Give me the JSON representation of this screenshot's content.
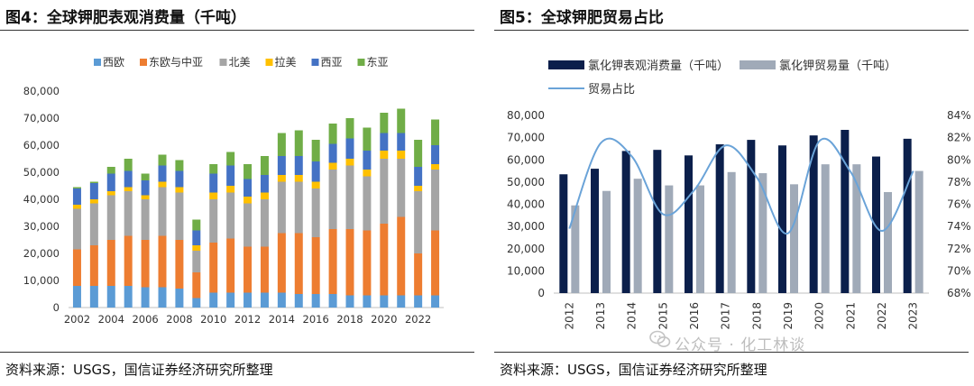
{
  "watermark": "公众号 · 化工林谈",
  "colors": {
    "c1": "#5b9bd5",
    "c2": "#ed7d31",
    "c3": "#a5a5a5",
    "c4": "#ffc000",
    "c5": "#4472c4",
    "c6": "#70ad47",
    "bar1": "#0b1f4b",
    "bar2": "#a0aab8",
    "line": "#6aa3d8"
  },
  "chart_data": [
    {
      "type": "bar",
      "stacked": true,
      "title": "图4：全球钾肥表观消费量（千吨）",
      "source": "资料来源：USGS，国信证券经济研究所整理",
      "legend_position": "top",
      "ylim": [
        0,
        80000
      ],
      "yticks": [
        "0",
        "10,000",
        "20,000",
        "30,000",
        "40,000",
        "50,000",
        "60,000",
        "70,000",
        "80,000"
      ],
      "categories": [
        "2002",
        "2003",
        "2004",
        "2005",
        "2006",
        "2007",
        "2008",
        "2009",
        "2010",
        "2011",
        "2012",
        "2013",
        "2014",
        "2015",
        "2016",
        "2017",
        "2018",
        "2019",
        "2020",
        "2021",
        "2022",
        "2023"
      ],
      "xtick_labels": [
        "2002",
        "2004",
        "2006",
        "2008",
        "2010",
        "2012",
        "2014",
        "2016",
        "2018",
        "2020",
        "2022"
      ],
      "series": [
        {
          "name": "西欧",
          "values": [
            8000,
            8000,
            8000,
            8000,
            7500,
            7500,
            7000,
            3500,
            5500,
            5500,
            5500,
            5500,
            5500,
            5000,
            5000,
            5000,
            4500,
            4500,
            4500,
            4500,
            4500,
            4500
          ]
        },
        {
          "name": "东欧与中亚",
          "values": [
            13500,
            15000,
            17000,
            18500,
            17500,
            19000,
            18000,
            9500,
            18500,
            20000,
            17000,
            17000,
            22000,
            22500,
            21000,
            24000,
            24500,
            24000,
            26500,
            29000,
            15500,
            24000
          ]
        },
        {
          "name": "北美",
          "values": [
            15000,
            15500,
            16500,
            16500,
            15000,
            18000,
            17500,
            8000,
            16000,
            17000,
            16000,
            17500,
            19000,
            19000,
            18000,
            22000,
            23500,
            20000,
            24000,
            21500,
            23000,
            22500
          ]
        },
        {
          "name": "拉美",
          "values": [
            1500,
            1500,
            1500,
            1500,
            1500,
            2000,
            2000,
            2000,
            2500,
            2500,
            2500,
            2500,
            2500,
            2500,
            2500,
            2500,
            2500,
            2500,
            3000,
            3000,
            2000,
            2000
          ]
        },
        {
          "name": "西亚",
          "values": [
            6000,
            6000,
            6500,
            6000,
            5500,
            6000,
            6000,
            5500,
            7000,
            7500,
            6500,
            6500,
            7000,
            7000,
            7500,
            7000,
            7500,
            7000,
            6500,
            6500,
            7000,
            7000
          ]
        },
        {
          "name": "东亚",
          "values": [
            500,
            500,
            2500,
            4500,
            2500,
            4000,
            4000,
            4000,
            3500,
            5000,
            5500,
            7000,
            8500,
            9500,
            8000,
            7500,
            7500,
            8500,
            7500,
            9000,
            10000,
            9500
          ]
        }
      ]
    },
    {
      "type": "bar+line",
      "title": "图5：全球钾肥贸易占比",
      "source": "资料来源：USGS，国信证券经济研究所整理",
      "legend_position": "top",
      "ylim": [
        0,
        80000
      ],
      "y2lim": [
        68,
        84
      ],
      "yticks": [
        "0",
        "10,000",
        "20,000",
        "30,000",
        "40,000",
        "50,000",
        "60,000",
        "70,000",
        "80,000"
      ],
      "y2ticks": [
        "68%",
        "70%",
        "72%",
        "74%",
        "76%",
        "78%",
        "80%",
        "82%",
        "84%"
      ],
      "categories": [
        "2012",
        "2013",
        "2014",
        "2015",
        "2016",
        "2017",
        "2018",
        "2019",
        "2020",
        "2021",
        "2022",
        "2023"
      ],
      "series": [
        {
          "name": "氯化钾表观消费量（千吨）",
          "type": "bar",
          "values": [
            53500,
            56000,
            64000,
            64500,
            62000,
            67000,
            69000,
            66500,
            71000,
            73500,
            61500,
            69500
          ]
        },
        {
          "name": "氯化钾贸易量（千吨）",
          "type": "bar",
          "values": [
            39500,
            46000,
            51500,
            48500,
            48500,
            54500,
            54000,
            49000,
            58000,
            58000,
            45500,
            55000
          ]
        },
        {
          "name": "贸易占比",
          "type": "line",
          "axis": "right",
          "values": [
            73.8,
            81.5,
            80.3,
            75.1,
            77.3,
            81.3,
            78.4,
            73.4,
            81.7,
            78.9,
            73.6,
            79.0
          ]
        }
      ]
    }
  ]
}
